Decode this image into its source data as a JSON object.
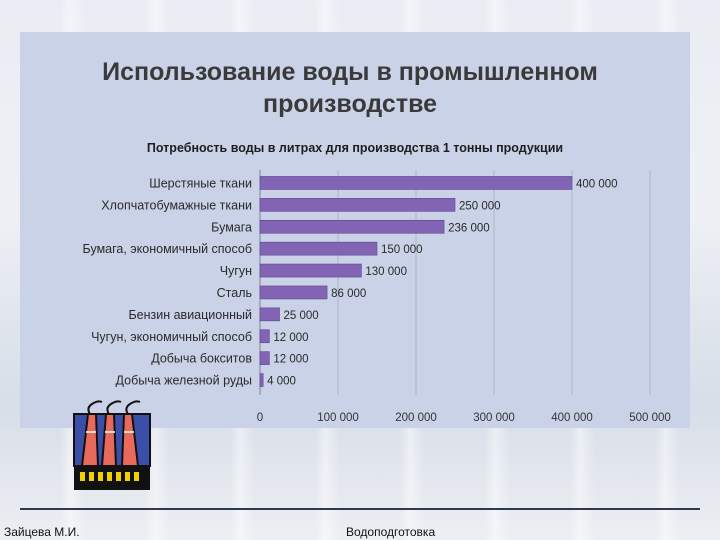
{
  "slide": {
    "title_line1": "Использование воды в промышленном",
    "title_line2": "производстве"
  },
  "chart_data": {
    "type": "bar",
    "orientation": "horizontal",
    "title": "Потребность воды в литрах для производства 1 тонны продукции",
    "categories": [
      "Шерстяные ткани",
      "Хлопчатобумажные ткани",
      "Бумага",
      "Бумага, экономичный способ",
      "Чугун",
      "Сталь",
      "Бензин авиационный",
      "Чугун, экономичный способ",
      "Добыча бокситов",
      "Добыча железной руды"
    ],
    "values": [
      400000,
      250000,
      236000,
      150000,
      130000,
      86000,
      25000,
      12000,
      12000,
      4000
    ],
    "value_labels": [
      "400 000",
      "250 000",
      "236 000",
      "150 000",
      "130 000",
      "86 000",
      "25 000",
      "12 000",
      "12 000",
      "4 000"
    ],
    "xlim": [
      0,
      500000
    ],
    "xticks": [
      0,
      100000,
      200000,
      300000,
      400000,
      500000
    ],
    "xtick_labels": [
      "0",
      "100 000",
      "200 000",
      "300 000",
      "400 000",
      "500 000"
    ],
    "grid": "vertical",
    "bar_color": "#8364b4"
  },
  "icons": {
    "factory": "factory-icon"
  },
  "footer": {
    "author": "Зайцева М.И.",
    "topic": "Водоподготовка"
  }
}
